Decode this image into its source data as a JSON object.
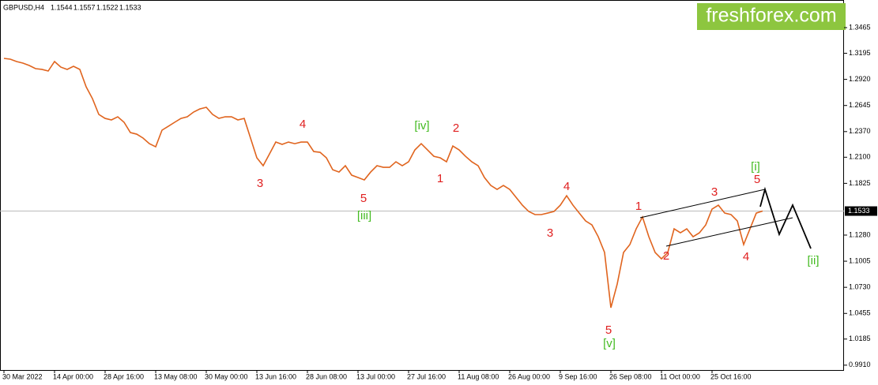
{
  "chart_data": {
    "type": "line",
    "symbol": "GBPUSD,H4",
    "quote": [
      1.1544,
      1.1557,
      1.1522,
      1.1533
    ],
    "logo": "freshforex.com",
    "current_price": 1.1533,
    "categories": [
      "30 Mar 2022",
      null,
      null,
      null,
      null,
      null,
      null,
      null,
      "14 Apr 00:00",
      null,
      null,
      null,
      null,
      null,
      null,
      null,
      "28 Apr 16:00",
      null,
      null,
      null,
      null,
      null,
      null,
      null,
      "13 May 08:00",
      null,
      null,
      null,
      null,
      null,
      null,
      null,
      "30 May 00:00",
      null,
      null,
      null,
      null,
      null,
      null,
      null,
      "13 Jun 16:00",
      null,
      null,
      null,
      null,
      null,
      null,
      null,
      "28 Jun 08:00",
      null,
      null,
      null,
      null,
      null,
      null,
      null,
      "13 Jul 00:00",
      null,
      null,
      null,
      null,
      null,
      null,
      null,
      "27 Jul 16:00",
      null,
      null,
      null,
      null,
      null,
      null,
      null,
      "11 Aug 08:00",
      null,
      null,
      null,
      null,
      null,
      null,
      null,
      "26 Aug 00:00",
      null,
      null,
      null,
      null,
      null,
      null,
      null,
      "9 Sep 16:00",
      null,
      null,
      null,
      null,
      null,
      null,
      null,
      "26 Sep 08:00",
      null,
      null,
      null,
      null,
      null,
      null,
      null,
      "11 Oct 00:00",
      null,
      null,
      null,
      null,
      null,
      null,
      null,
      "25 Oct 16:00",
      null,
      null,
      null,
      null,
      null,
      null,
      null,
      null
    ],
    "series": [
      {
        "name": "GBPUSD",
        "color": "#e0641e",
        "values": [
          1.3141,
          1.3133,
          1.3108,
          1.3091,
          1.3066,
          1.3033,
          1.3025,
          1.3008,
          1.3108,
          1.3049,
          1.3025,
          1.3058,
          1.3025,
          1.2842,
          1.2717,
          1.2551,
          1.2509,
          1.2493,
          1.2526,
          1.2468,
          1.236,
          1.2343,
          1.2302,
          1.2243,
          1.221,
          1.2385,
          1.2426,
          1.2468,
          1.2509,
          1.2526,
          1.2576,
          1.2609,
          1.2626,
          1.2551,
          1.2509,
          1.2526,
          1.2526,
          1.2493,
          1.2509,
          1.2302,
          1.2094,
          1.2011,
          1.2135,
          1.226,
          1.2235,
          1.226,
          1.2243,
          1.226,
          1.226,
          1.216,
          1.2152,
          1.2094,
          1.1969,
          1.1944,
          1.2011,
          1.1911,
          1.1886,
          1.1861,
          1.1944,
          1.2011,
          1.1994,
          1.1994,
          1.2052,
          1.2011,
          1.2052,
          1.2177,
          1.2243,
          1.2177,
          1.211,
          1.2094,
          1.2052,
          1.2218,
          1.2177,
          1.211,
          1.2052,
          1.2011,
          1.1886,
          1.1803,
          1.1761,
          1.1803,
          1.1761,
          1.1678,
          1.1595,
          1.1529,
          1.1496,
          1.1496,
          1.1512,
          1.1529,
          1.1595,
          1.1695,
          1.1595,
          1.1512,
          1.1429,
          1.1387,
          1.1263,
          1.1097,
          1.0515,
          1.0764,
          1.1097,
          1.118,
          1.1346,
          1.1471,
          1.1263,
          1.1097,
          1.103,
          1.1097,
          1.1346,
          1.1304,
          1.1346,
          1.1263,
          1.1304,
          1.1387,
          1.1554,
          1.1595,
          1.1512,
          1.1496,
          1.1429,
          1.118,
          1.1346,
          1.1512,
          1.1533
        ]
      }
    ],
    "ylim": [
      0.9859,
      1.3756
    ],
    "yticks": [
      1.3465,
      1.3195,
      {
        "value": 1.292,
        "label": "1.2920"
      },
      1.2645,
      {
        "value": 1.237,
        "label": "1.2370"
      },
      {
        "value": 1.21,
        "label": "1.2100"
      },
      1.1825,
      {
        "value": 1.128,
        "label": "1.1280"
      },
      1.1005,
      {
        "value": 1.073,
        "label": "1.0730"
      },
      1.0455,
      1.0185,
      {
        "value": 0.991,
        "label": "0.9910"
      }
    ],
    "annotations": [
      {
        "text": "3",
        "color": "#e02020"
      },
      {
        "text": "4",
        "color": "#e02020"
      },
      {
        "text": "5",
        "color": "#e02020"
      },
      {
        "text": "[iii]",
        "color": "#44bb22"
      },
      {
        "text": "[iv]",
        "color": "#44bb22"
      },
      {
        "text": "2",
        "color": "#e02020"
      },
      {
        "text": "1",
        "color": "#e02020"
      },
      {
        "text": "3",
        "color": "#e02020"
      },
      {
        "text": "4",
        "color": "#e02020"
      },
      {
        "text": "5",
        "color": "#e02020"
      },
      {
        "text": "[v]",
        "color": "#44bb22"
      },
      {
        "text": "1",
        "color": "#e02020"
      },
      {
        "text": "2",
        "color": "#e02020"
      },
      {
        "text": "3",
        "color": "#e02020"
      },
      {
        "text": "4",
        "color": "#e02020"
      },
      {
        "text": "5",
        "color": "#e02020"
      },
      {
        "text": "[i]",
        "color": "#44bb22"
      },
      {
        "text": "[ii]",
        "color": "#44bb22"
      }
    ]
  }
}
